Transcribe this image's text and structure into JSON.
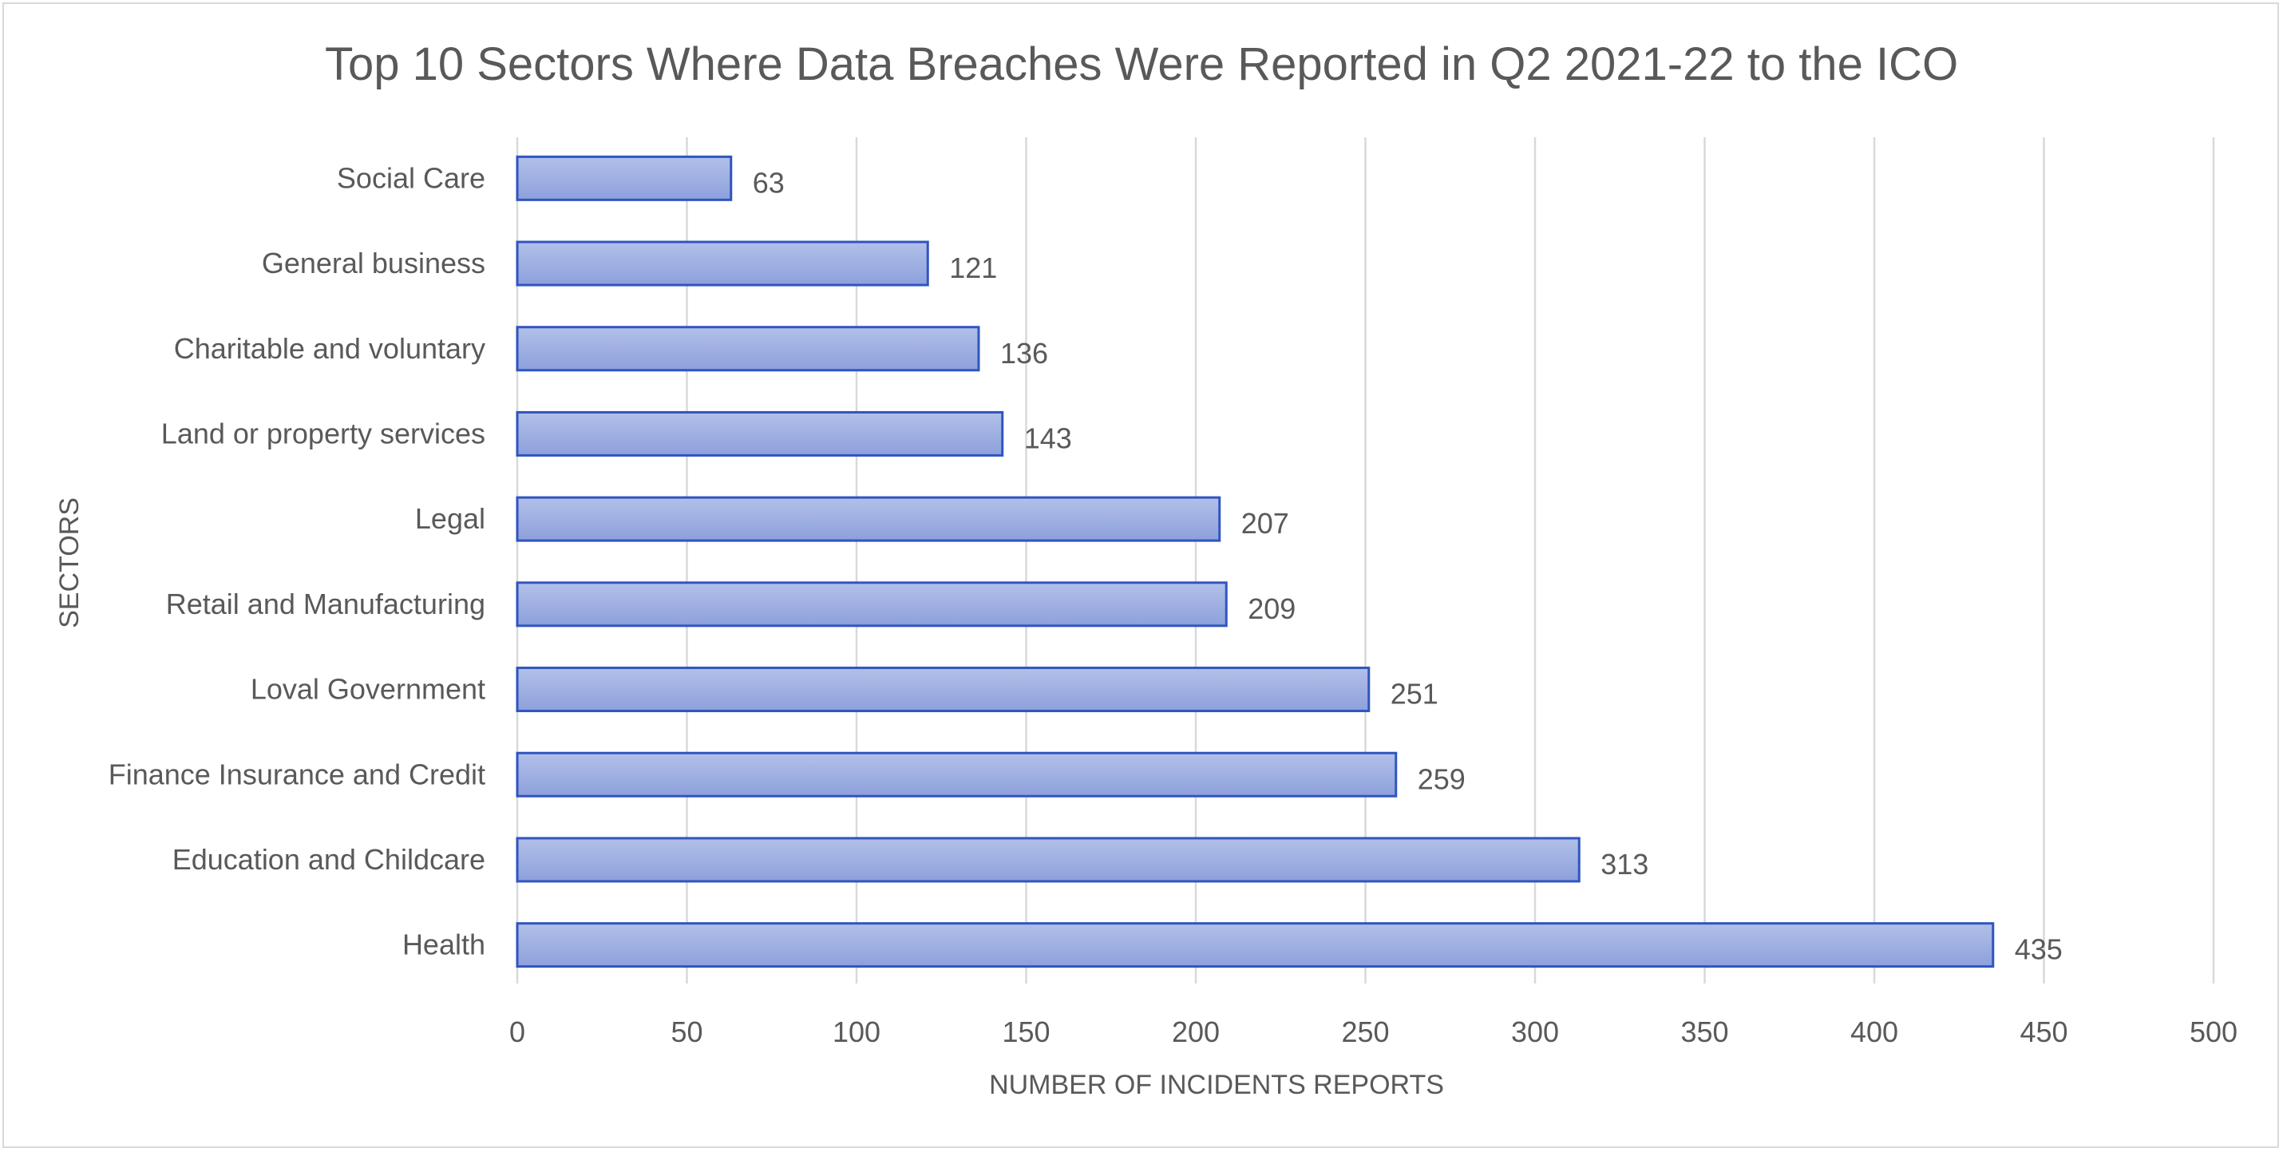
{
  "chart_data": {
    "type": "bar",
    "orientation": "horizontal",
    "title": "Top 10 Sectors Where Data Breaches Were Reported in Q2 2021-22 to the ICO",
    "xlabel": "NUMBER OF INCIDENTS REPORTS",
    "ylabel": "SECTORS",
    "categories": [
      "Social Care",
      "General business",
      "Charitable and voluntary",
      "Land or property services",
      "Legal ",
      "Retail and Manufacturing",
      "Loval Government",
      "Finance Insurance and Credit",
      "Education and Childcare",
      "Health"
    ],
    "values": [
      63,
      121,
      136,
      143,
      207,
      209,
      251,
      259,
      313,
      435
    ],
    "xlim": [
      0,
      500
    ],
    "xticks": [
      0,
      50,
      100,
      150,
      200,
      250,
      300,
      350,
      400,
      450,
      500
    ],
    "grid": "vertical",
    "legend": "none",
    "data_labels": true,
    "colors": {
      "bar_fill_top": "#b2c0e8",
      "bar_fill_bottom": "#8da0dc",
      "bar_stroke": "#2f55c0",
      "text": "#595959",
      "grid": "#d9d9d9"
    }
  }
}
